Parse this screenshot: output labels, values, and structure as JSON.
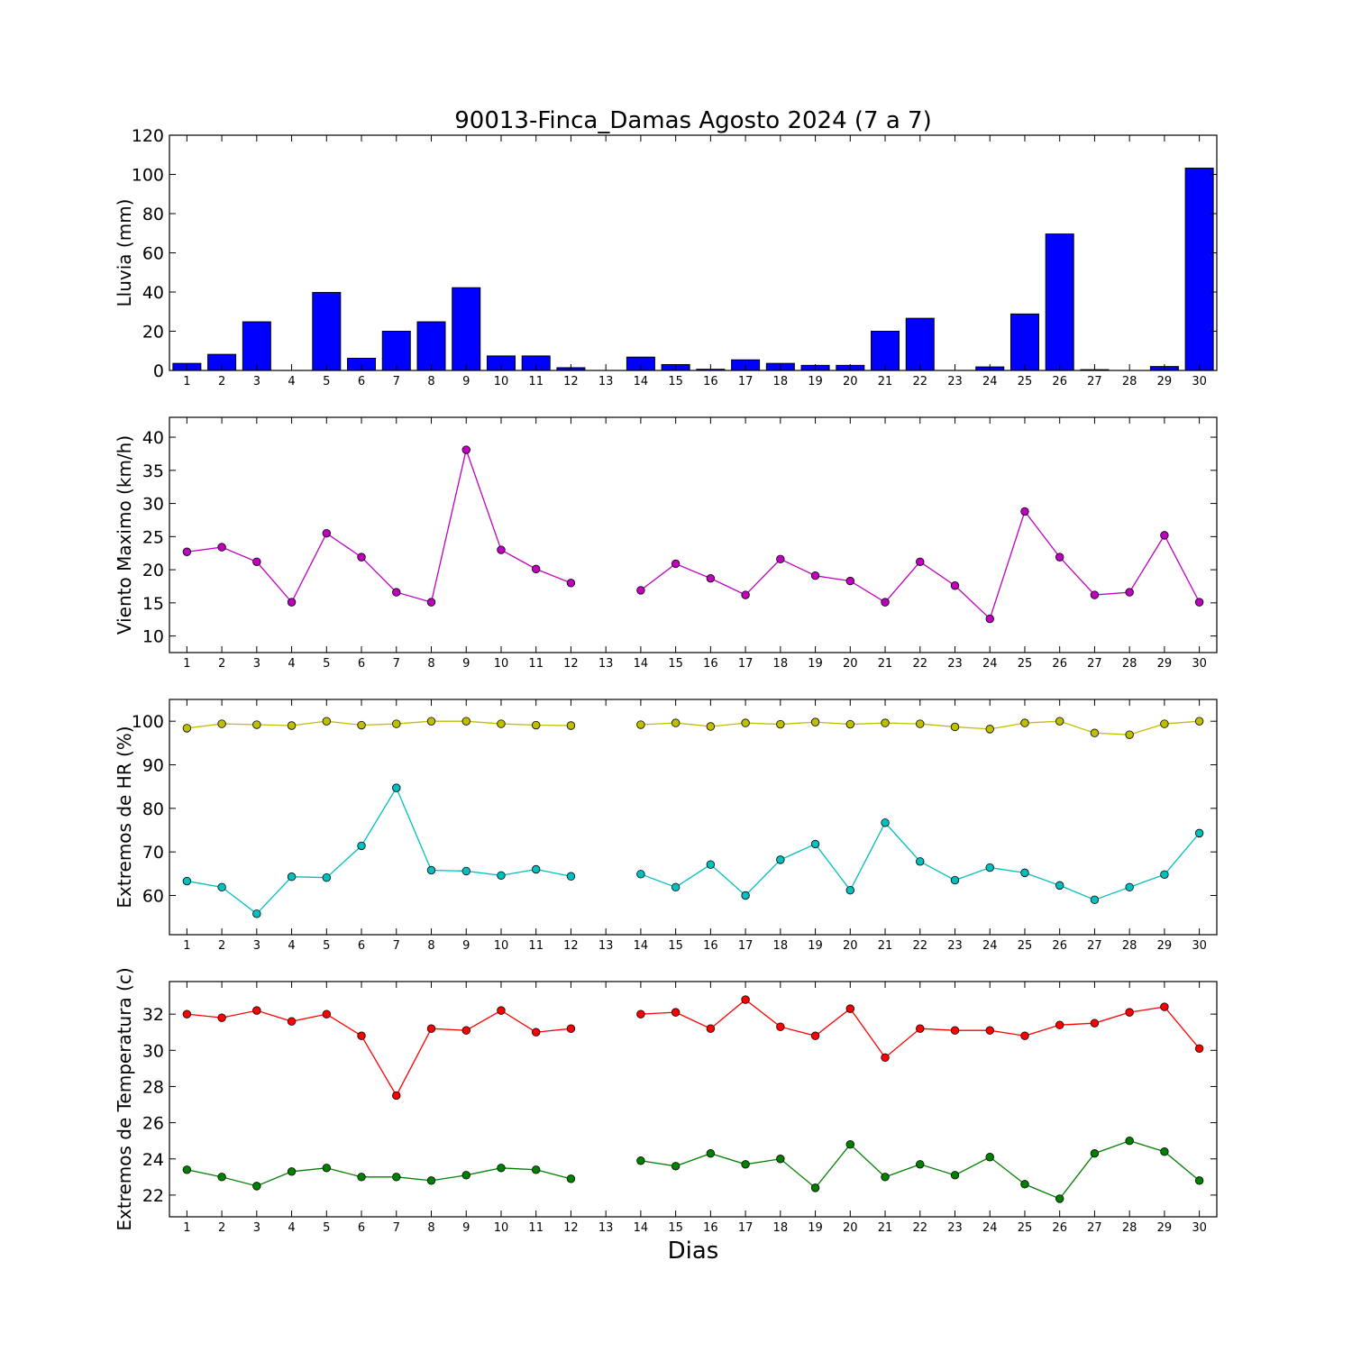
{
  "figure": {
    "title": "90013-Finca_Damas Agosto 2024  (7 a 7)",
    "xlabel": "Dias"
  },
  "chart_data": [
    {
      "type": "bar",
      "ylabel": "Lluvia (mm)",
      "x": [
        1,
        2,
        3,
        4,
        5,
        6,
        7,
        8,
        9,
        10,
        11,
        12,
        13,
        14,
        15,
        16,
        17,
        18,
        19,
        20,
        21,
        22,
        23,
        24,
        25,
        26,
        27,
        28,
        29,
        30
      ],
      "xlim": [
        0.5,
        30.5
      ],
      "ylim": [
        0,
        120
      ],
      "yticks": [
        0,
        20,
        40,
        60,
        80,
        100,
        120
      ],
      "series": [
        {
          "color": "#0000ff",
          "values": [
            3.6,
            8.2,
            24.8,
            0,
            39.8,
            6.2,
            20.0,
            24.8,
            42.2,
            7.4,
            7.4,
            1.4,
            0,
            6.8,
            3.0,
            0.6,
            5.4,
            3.6,
            2.6,
            2.6,
            20.0,
            26.6,
            0,
            1.8,
            28.8,
            69.6,
            0.4,
            0,
            2.0,
            103.2
          ]
        }
      ],
      "grid": false
    },
    {
      "type": "line",
      "ylabel": "Viento Maximo (km/h)",
      "x": [
        1,
        2,
        3,
        4,
        5,
        6,
        7,
        8,
        9,
        10,
        11,
        12,
        13,
        14,
        15,
        16,
        17,
        18,
        19,
        20,
        21,
        22,
        23,
        24,
        25,
        26,
        27,
        28,
        29,
        30
      ],
      "xlim": [
        0.5,
        30.5
      ],
      "ylim": [
        7.5,
        43
      ],
      "yticks": [
        10,
        15,
        20,
        25,
        30,
        35,
        40
      ],
      "series": [
        {
          "color": "#bf00bf",
          "values": [
            22.7,
            23.4,
            21.2,
            15.1,
            25.5,
            21.9,
            16.6,
            15.1,
            38.1,
            23.0,
            20.1,
            18.0,
            null,
            16.9,
            20.9,
            18.7,
            16.2,
            21.6,
            19.1,
            18.3,
            15.1,
            21.2,
            17.6,
            12.6,
            28.8,
            21.9,
            16.2,
            16.6,
            25.2,
            15.1
          ]
        }
      ],
      "grid": false
    },
    {
      "type": "line",
      "ylabel": "Extremos de HR (%)",
      "x": [
        1,
        2,
        3,
        4,
        5,
        6,
        7,
        8,
        9,
        10,
        11,
        12,
        13,
        14,
        15,
        16,
        17,
        18,
        19,
        20,
        21,
        22,
        23,
        24,
        25,
        26,
        27,
        28,
        29,
        30
      ],
      "xlim": [
        0.5,
        30.5
      ],
      "ylim": [
        51,
        105
      ],
      "yticks": [
        60,
        70,
        80,
        90,
        100
      ],
      "series": [
        {
          "color": "#bfbf00",
          "values": [
            98.4,
            99.4,
            99.2,
            99.0,
            100.0,
            99.1,
            99.4,
            100.0,
            100.0,
            99.4,
            99.1,
            99.0,
            null,
            99.2,
            99.6,
            98.8,
            99.6,
            99.3,
            99.8,
            99.3,
            99.6,
            99.4,
            98.7,
            98.2,
            99.6,
            100.0,
            97.3,
            96.9,
            99.4,
            100.0
          ]
        },
        {
          "color": "#00bfbf",
          "values": [
            63.3,
            61.9,
            55.8,
            64.3,
            64.1,
            71.4,
            84.7,
            65.8,
            65.6,
            64.6,
            66.0,
            64.4,
            null,
            64.9,
            61.9,
            67.1,
            60.0,
            68.2,
            71.8,
            61.2,
            76.7,
            67.8,
            63.5,
            66.4,
            65.2,
            62.3,
            59.0,
            61.9,
            64.8,
            74.3
          ]
        }
      ],
      "grid": false
    },
    {
      "type": "line",
      "ylabel": "Extremos de Temperatura (c)",
      "x": [
        1,
        2,
        3,
        4,
        5,
        6,
        7,
        8,
        9,
        10,
        11,
        12,
        13,
        14,
        15,
        16,
        17,
        18,
        19,
        20,
        21,
        22,
        23,
        24,
        25,
        26,
        27,
        28,
        29,
        30
      ],
      "xlim": [
        0.5,
        30.5
      ],
      "ylim": [
        20.8,
        33.8
      ],
      "yticks": [
        22,
        24,
        26,
        28,
        30,
        32
      ],
      "series": [
        {
          "color": "#ff0000",
          "values": [
            32.0,
            31.8,
            32.2,
            31.6,
            32.0,
            30.8,
            27.5,
            31.2,
            31.1,
            32.2,
            31.0,
            31.2,
            null,
            32.0,
            32.1,
            31.2,
            32.8,
            31.3,
            30.8,
            32.3,
            29.6,
            31.2,
            31.1,
            31.1,
            30.8,
            31.4,
            31.5,
            32.1,
            32.4,
            30.1
          ]
        },
        {
          "color": "#008000",
          "values": [
            23.4,
            23.0,
            22.5,
            23.3,
            23.5,
            23.0,
            23.0,
            22.8,
            23.1,
            23.5,
            23.4,
            22.9,
            null,
            23.9,
            23.6,
            24.3,
            23.7,
            24.0,
            22.4,
            24.8,
            23.0,
            23.7,
            23.1,
            24.1,
            22.6,
            21.8,
            24.3,
            25.0,
            24.4,
            22.8
          ]
        }
      ],
      "grid": false
    }
  ]
}
